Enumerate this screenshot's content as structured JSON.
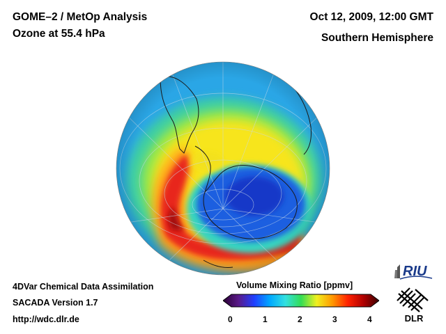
{
  "header": {
    "title": "GOME–2 / MetOp Analysis",
    "subtitle": "Ozone at 55.4 hPa",
    "datetime": "Oct 12, 2009, 12:00 GMT",
    "region": "Southern Hemisphere"
  },
  "footer": {
    "method": "4DVar Chemical Data Assimilation",
    "version": "SACADA Version 1.7",
    "url": "http://wdc.dlr.de"
  },
  "colorbar": {
    "label": "Volume Mixing Ratio [ppmv]",
    "ticks": [
      "0",
      "1",
      "2",
      "3",
      "4"
    ],
    "min": 0,
    "max": 4,
    "stops": [
      "#2b0033",
      "#5a1a8a",
      "#1f3fff",
      "#00a8ff",
      "#33e0e0",
      "#33dd55",
      "#f0f020",
      "#ff9900",
      "#ff2200",
      "#b00000",
      "#3a0000"
    ]
  },
  "logos": {
    "riu": "RIU",
    "dlr": "DLR"
  },
  "map": {
    "projection": "orthographic",
    "center": "South Pole",
    "field_colors": {
      "background": "#2aa6e6",
      "hole": "#1e5fe0",
      "collar": "#f7e51e",
      "max": "#e8261e"
    }
  }
}
